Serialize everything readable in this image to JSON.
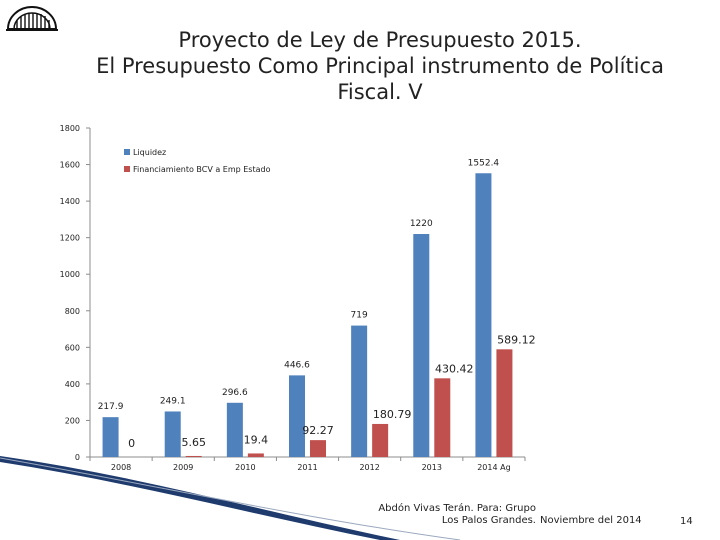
{
  "slide": {
    "title_line1": "Proyecto de Ley de Presupuesto 2015.",
    "title_line2": "El Presupuesto Como Principal instrumento de Política",
    "title_line3": "Fiscal. V",
    "footer_author_line1": "Abdón Vivas Terán. Para: Grupo",
    "footer_author_line2": "Los Palos Grandes.",
    "footer_date": "Noviembre del 2014",
    "page_number": "14"
  },
  "colors": {
    "series1": "#4f81bd",
    "series2": "#c0504d",
    "axis": "#8c8c8c",
    "accent": "#1f3b6e"
  },
  "chart_data": {
    "type": "bar",
    "title": "",
    "xlabel": "",
    "ylabel": "",
    "categories": [
      "2008",
      "2009",
      "2010",
      "2011",
      "2012",
      "2013",
      "2014 Ag"
    ],
    "ylim": [
      0,
      1800
    ],
    "yticks": [
      0,
      200,
      400,
      600,
      800,
      1000,
      1200,
      1400,
      1600,
      1800
    ],
    "legend_position": "top-left",
    "series": [
      {
        "name": "Liquidez",
        "values": [
          217.9,
          249.1,
          296.6,
          446.6,
          719,
          1220,
          1552.4
        ],
        "labels": [
          "217.9",
          "249.1",
          "296.6",
          "446.6",
          "719",
          "1220",
          "1552.4"
        ]
      },
      {
        "name": "Financiamiento BCV a Emp Estado",
        "values": [
          0,
          5.65,
          19.4,
          92.27,
          180.79,
          430.42,
          589.12
        ],
        "labels": [
          "0",
          "5.65",
          "19.4",
          "92.27",
          "180.79",
          "430.42",
          "589.12"
        ]
      }
    ]
  }
}
